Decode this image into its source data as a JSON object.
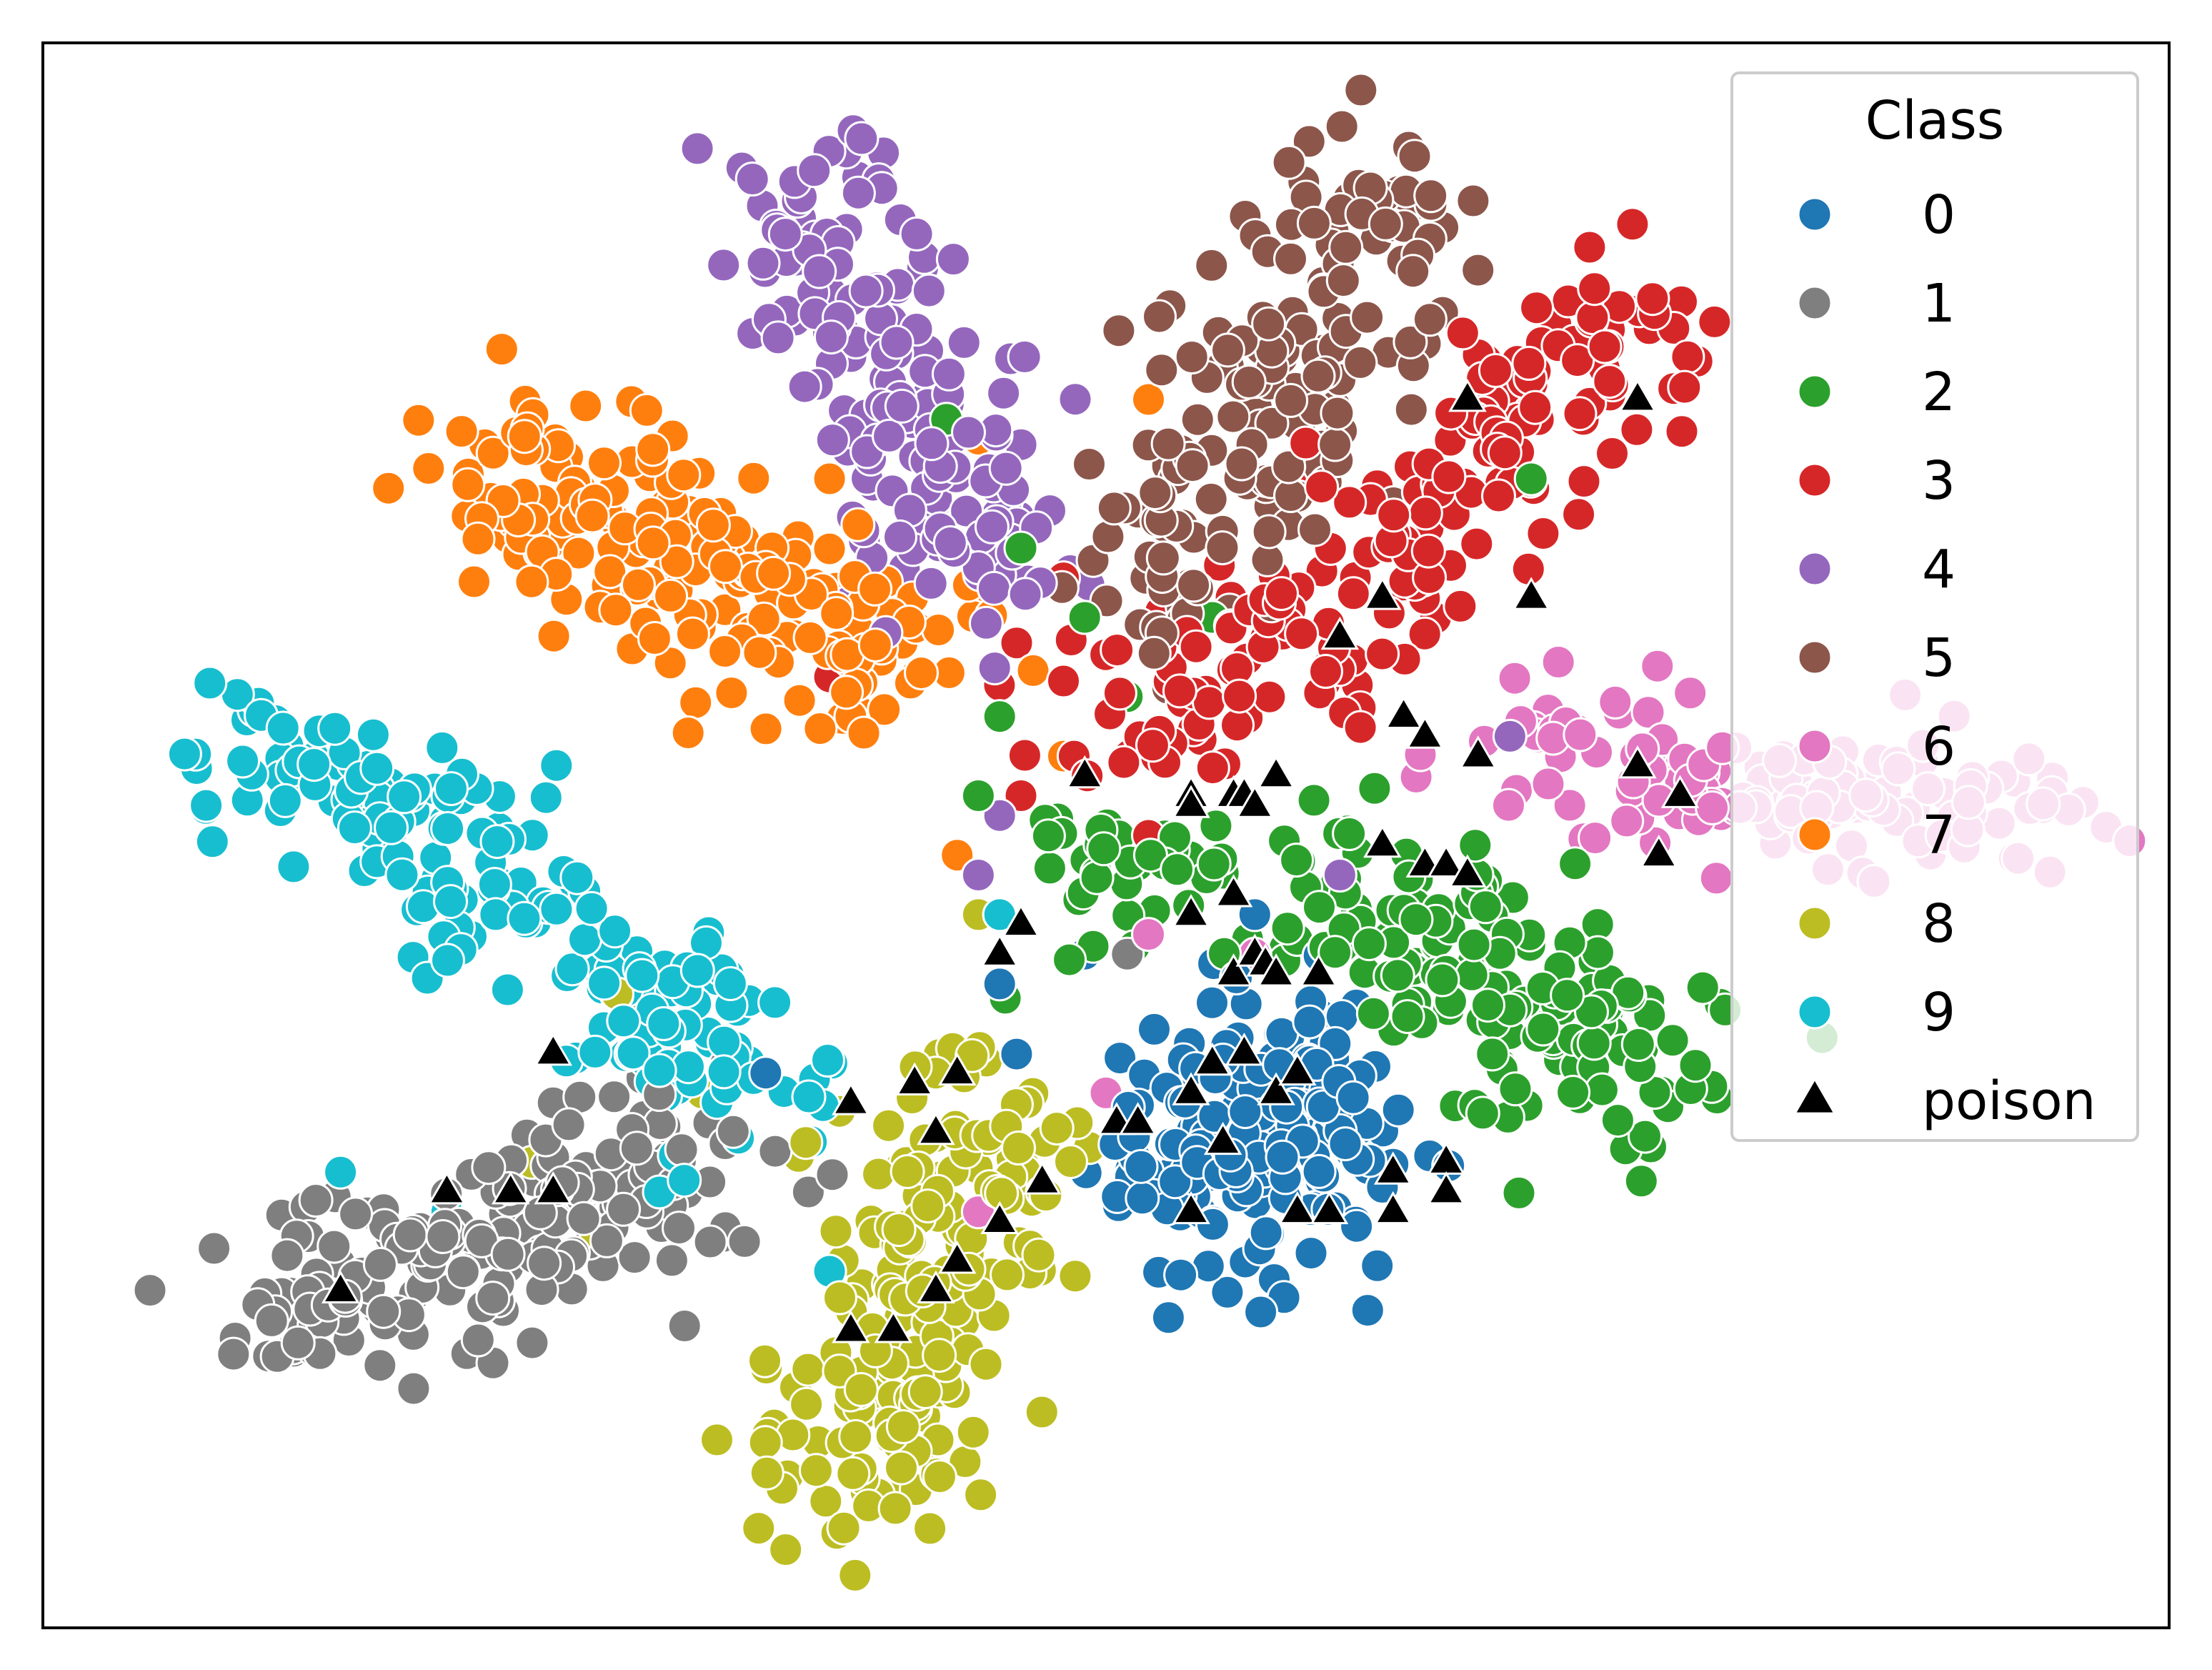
{
  "chart_data": {
    "type": "scatter",
    "title": "",
    "xlabel": "",
    "ylabel": "",
    "xlim": [
      -100,
      100
    ],
    "ylim": [
      -80,
      80
    ],
    "ticks_visible": false,
    "grid": false,
    "legend": {
      "title": "Class",
      "placement": "top-right",
      "entries": [
        {
          "label": "0",
          "color": "#1f77b4",
          "marker": "circle"
        },
        {
          "label": "1",
          "color": "#7f7f7f",
          "marker": "circle"
        },
        {
          "label": "2",
          "color": "#2ca02c",
          "marker": "circle"
        },
        {
          "label": "3",
          "color": "#d62728",
          "marker": "circle"
        },
        {
          "label": "4",
          "color": "#9467bd",
          "marker": "circle"
        },
        {
          "label": "5",
          "color": "#8c564b",
          "marker": "circle"
        },
        {
          "label": "6",
          "color": "#e377c2",
          "marker": "circle"
        },
        {
          "label": "7",
          "color": "#ff7f0e",
          "marker": "circle"
        },
        {
          "label": "8",
          "color": "#bcbd22",
          "marker": "circle"
        },
        {
          "label": "9",
          "color": "#17becf",
          "marker": "circle"
        },
        {
          "label": "poison",
          "color": "#000000",
          "marker": "triangle"
        }
      ]
    },
    "clusters": [
      {
        "class": "0",
        "color": "#1f77b4",
        "centers": [
          [
            11,
            -36
          ],
          [
            21,
            -31
          ],
          [
            16,
            -26
          ],
          [
            9,
            -29
          ]
        ],
        "sigma": [
          5.0,
          6.0
        ],
        "n": 200
      },
      {
        "class": "1",
        "color": "#7f7f7f",
        "centers": [
          [
            -74,
            -47
          ],
          [
            -63,
            -44
          ],
          [
            -52,
            -38
          ],
          [
            -41,
            -33
          ]
        ],
        "sigma": [
          5.5,
          4.5
        ],
        "n": 200
      },
      {
        "class": "2",
        "color": "#2ca02c",
        "centers": [
          [
            22,
            -6
          ],
          [
            33,
            -12
          ],
          [
            42,
            -18
          ],
          [
            50,
            -24
          ],
          [
            3,
            -5
          ]
        ],
        "sigma": [
          5.5,
          4.5
        ],
        "n": 200
      },
      {
        "class": "3",
        "color": "#d62728",
        "centers": [
          [
            38,
            42
          ],
          [
            28,
            30
          ],
          [
            18,
            20
          ],
          [
            6,
            14
          ],
          [
            46,
            50
          ]
        ],
        "sigma": [
          5.5,
          5.0
        ],
        "n": 200
      },
      {
        "class": "4",
        "color": "#9467bd",
        "centers": [
          [
            -28,
            62
          ],
          [
            -22,
            50
          ],
          [
            -16,
            38
          ],
          [
            -13,
            30
          ]
        ],
        "sigma": [
          5.0,
          5.0
        ],
        "n": 180
      },
      {
        "class": "5",
        "color": "#8c564b",
        "centers": [
          [
            26,
            62
          ],
          [
            20,
            50
          ],
          [
            14,
            40
          ],
          [
            7,
            28
          ]
        ],
        "sigma": [
          5.0,
          6.0
        ],
        "n": 180
      },
      {
        "class": "6",
        "color": "#e377c2",
        "centers": [
          [
            58,
            4
          ],
          [
            70,
            4
          ],
          [
            80,
            2
          ],
          [
            45,
            8
          ]
        ],
        "sigma": [
          6.0,
          3.5
        ],
        "n": 160
      },
      {
        "class": "7",
        "color": "#ff7f0e",
        "centers": [
          [
            -54,
            36
          ],
          [
            -45,
            30
          ],
          [
            -36,
            26
          ],
          [
            -24,
            18
          ]
        ],
        "sigma": [
          6.0,
          5.0
        ],
        "n": 200
      },
      {
        "class": "8",
        "color": "#bcbd22",
        "centers": [
          [
            -20,
            -52
          ],
          [
            -23,
            -64
          ],
          [
            -16,
            -42
          ],
          [
            -12,
            -31
          ]
        ],
        "sigma": [
          5.0,
          6.0
        ],
        "n": 200
      },
      {
        "class": "9",
        "color": "#17becf",
        "centers": [
          [
            -78,
            8
          ],
          [
            -66,
            3
          ],
          [
            -54,
            -6
          ],
          [
            -44,
            -16
          ],
          [
            -36,
            -24
          ]
        ],
        "sigma": [
          6.0,
          4.0
        ],
        "n": 200
      }
    ],
    "outliers": [
      {
        "class": "0",
        "color": "#1f77b4",
        "points": [
          [
            -32,
            -24
          ],
          [
            -10,
            -15
          ],
          [
            -2,
            -12
          ],
          [
            14,
            -8
          ],
          [
            20,
            -18
          ]
        ]
      },
      {
        "class": "1",
        "color": "#7f7f7f",
        "points": [
          [
            -34,
            -41
          ],
          [
            -28,
            -36
          ],
          [
            -52,
            -27
          ],
          [
            2,
            -12
          ]
        ]
      },
      {
        "class": "2",
        "color": "#2ca02c",
        "points": [
          [
            -8,
            29
          ],
          [
            -15,
            42
          ],
          [
            -2,
            22
          ],
          [
            -10,
            12
          ],
          [
            2,
            14
          ],
          [
            40,
            36
          ],
          [
            -12,
            4
          ],
          [
            10,
            22
          ]
        ]
      },
      {
        "class": "3",
        "color": "#d62728",
        "points": [
          [
            -26,
            16
          ],
          [
            -4,
            26
          ],
          [
            -3,
            8
          ],
          [
            4,
            0
          ],
          [
            -8,
            4
          ]
        ]
      },
      {
        "class": "4",
        "color": "#9467bd",
        "points": [
          [
            -4,
            8
          ],
          [
            -10,
            2
          ],
          [
            -12,
            -4
          ],
          [
            22,
            -4
          ],
          [
            38,
            10
          ],
          [
            -34,
            26
          ],
          [
            -22,
            28
          ]
        ]
      },
      {
        "class": "6",
        "color": "#e377c2",
        "points": [
          [
            0,
            -26
          ],
          [
            14,
            -12
          ],
          [
            10,
            -4
          ],
          [
            -12,
            -38
          ],
          [
            4,
            -10
          ]
        ]
      },
      {
        "class": "7",
        "color": "#ff7f0e",
        "points": [
          [
            -10,
            -8
          ],
          [
            -14,
            -2
          ],
          [
            -24,
            12
          ],
          [
            -30,
            20
          ],
          [
            -26,
            36
          ],
          [
            -12,
            40
          ],
          [
            -4,
            8
          ],
          [
            4,
            44
          ]
        ]
      },
      {
        "class": "8",
        "color": "#bcbd22",
        "points": [
          [
            -46,
            -16
          ],
          [
            -38,
            -26
          ],
          [
            -48,
            -40
          ],
          [
            -54,
            -33
          ],
          [
            -16,
            -24
          ],
          [
            -12,
            -8
          ]
        ]
      },
      {
        "class": "9",
        "color": "#17becf",
        "points": [
          [
            -26,
            -44
          ],
          [
            -72,
            -34
          ],
          [
            -62,
            -38
          ],
          [
            -42,
            -36
          ],
          [
            -10,
            -8
          ]
        ]
      }
    ],
    "poison": [
      [
        -52,
        -22
      ],
      [
        -52,
        -36
      ],
      [
        -56,
        -36
      ],
      [
        -62,
        -36
      ],
      [
        -72,
        -46
      ],
      [
        -24,
        -50
      ],
      [
        -20,
        -50
      ],
      [
        -16,
        -46
      ],
      [
        -14,
        -43
      ],
      [
        -16,
        -30
      ],
      [
        -18,
        -25
      ],
      [
        -14,
        -24
      ],
      [
        -24,
        -27
      ],
      [
        -10,
        -12
      ],
      [
        -10,
        -39
      ],
      [
        -6,
        -35
      ],
      [
        1,
        -29
      ],
      [
        3,
        -29
      ],
      [
        -8,
        -9
      ],
      [
        -2,
        6
      ],
      [
        8,
        -8
      ],
      [
        12,
        -6
      ],
      [
        8,
        4
      ],
      [
        8,
        3
      ],
      [
        12,
        4
      ],
      [
        13,
        4
      ],
      [
        14,
        3
      ],
      [
        12,
        -14
      ],
      [
        14,
        -12
      ],
      [
        15,
        -13
      ],
      [
        16,
        -14
      ],
      [
        20,
        -14
      ],
      [
        13,
        -22
      ],
      [
        11,
        -31
      ],
      [
        16,
        -26
      ],
      [
        18,
        -24
      ],
      [
        8,
        -26
      ],
      [
        10,
        -23
      ],
      [
        8,
        -38
      ],
      [
        18,
        -38
      ],
      [
        21,
        -38
      ],
      [
        27,
        -34
      ],
      [
        27,
        -38
      ],
      [
        32,
        -33
      ],
      [
        32,
        -36
      ],
      [
        26,
        -1
      ],
      [
        30,
        -3
      ],
      [
        32,
        -3
      ],
      [
        34,
        -4
      ],
      [
        16,
        6
      ],
      [
        22,
        20
      ],
      [
        26,
        24
      ],
      [
        28,
        12
      ],
      [
        30,
        10
      ],
      [
        35,
        8
      ],
      [
        40,
        24
      ],
      [
        50,
        7
      ],
      [
        52,
        -2
      ],
      [
        34,
        44
      ],
      [
        50,
        44
      ],
      [
        54,
        4
      ]
    ]
  }
}
